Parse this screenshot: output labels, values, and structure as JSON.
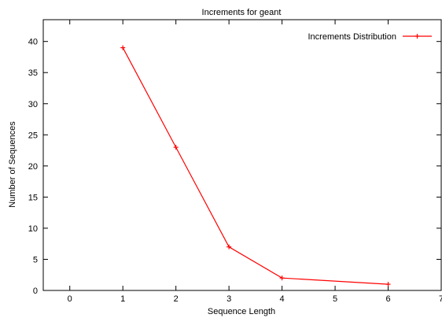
{
  "chart_data": {
    "type": "line",
    "title": "Increments for geant",
    "xlabel": "Sequence Length",
    "ylabel": "Number of Sequences",
    "xlim": [
      -0.5,
      7
    ],
    "ylim": [
      0,
      43.5
    ],
    "xticks": [
      0,
      1,
      2,
      3,
      4,
      5,
      6,
      7
    ],
    "yticks": [
      0,
      5,
      10,
      15,
      20,
      25,
      30,
      35,
      40
    ],
    "xtick_labels": [
      "0",
      "1",
      "2",
      "3",
      "4",
      "5",
      "6",
      "7"
    ],
    "ytick_labels": [
      "0",
      "5",
      "10",
      "15",
      "20",
      "25",
      "30",
      "35",
      "40"
    ],
    "grid": false,
    "legend": "top-right",
    "series": [
      {
        "name": "Increments Distribution",
        "color": "#ff0000",
        "marker": "plus",
        "x": [
          1,
          2,
          3,
          4,
          6
        ],
        "y": [
          39,
          23,
          7,
          2,
          1
        ]
      }
    ]
  }
}
